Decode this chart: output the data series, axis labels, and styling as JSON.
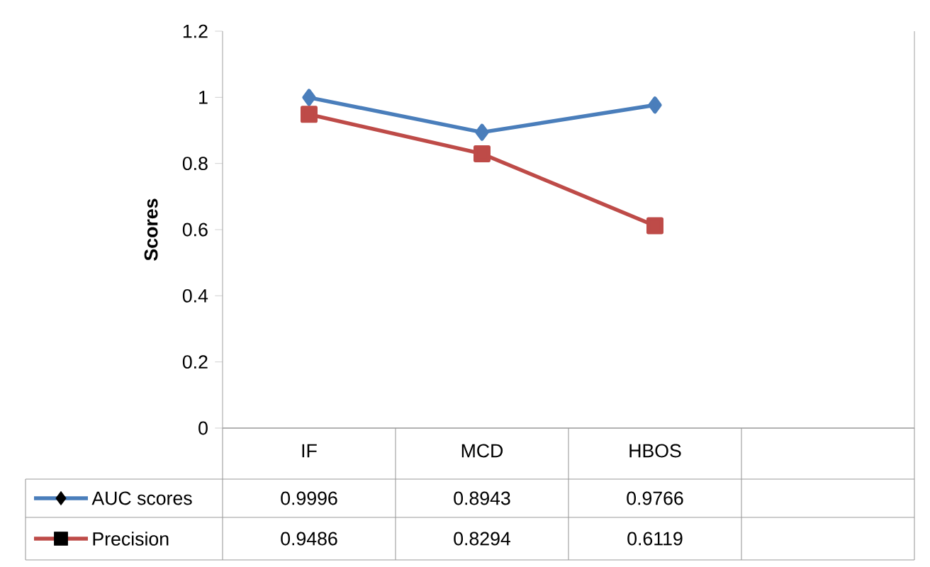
{
  "chart_data": {
    "type": "line",
    "ylabel": "Scores",
    "categories": [
      "IF",
      "MCD",
      "HBOS",
      null
    ],
    "series": [
      {
        "name": "AUC scores",
        "color": "#4a7ebb",
        "marker": "diamond",
        "values": [
          0.9996,
          0.8943,
          0.9766,
          null
        ]
      },
      {
        "name": "Precision",
        "color": "#be4b48",
        "marker": "square",
        "values": [
          0.9486,
          0.8294,
          0.6119,
          null
        ]
      }
    ],
    "ylim": [
      0,
      1.2
    ],
    "yticks": [
      0,
      0.2,
      0.4,
      0.6,
      0.8,
      1,
      1.2
    ],
    "grid": false,
    "legend": "bottom",
    "data_labels": true
  }
}
